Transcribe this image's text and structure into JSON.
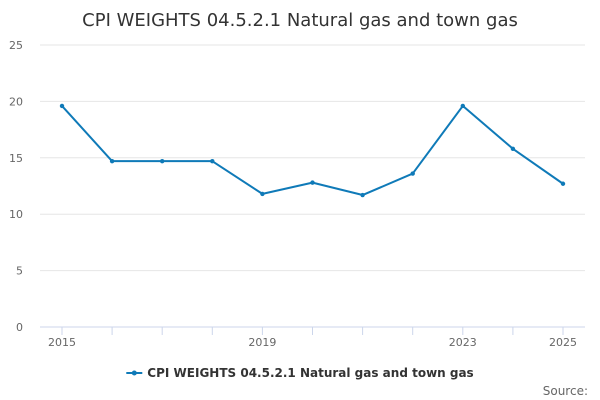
{
  "chart_data": {
    "type": "line",
    "title": "CPI WEIGHTS 04.5.2.1 Natural gas and town gas",
    "xlabel": "",
    "ylabel": "",
    "x": [
      2015,
      2016,
      2017,
      2018,
      2019,
      2020,
      2021,
      2022,
      2023,
      2024,
      2025
    ],
    "x_tick_labels": [
      {
        "x": 2015,
        "label": "2015"
      },
      {
        "x": 2019,
        "label": "2019"
      },
      {
        "x": 2023,
        "label": "2023"
      },
      {
        "x": 2025,
        "label": "2025"
      }
    ],
    "y_ticks": [
      {
        "value": 0,
        "label": "0"
      },
      {
        "value": 5,
        "label": "5"
      },
      {
        "value": 10,
        "label": "10"
      },
      {
        "value": 15,
        "label": "15"
      },
      {
        "value": 20,
        "label": "20"
      },
      {
        "value": 25,
        "label": "25"
      }
    ],
    "xlim": [
      2015,
      2025
    ],
    "ylim": [
      0,
      25
    ],
    "grid": true,
    "legend": "bottom-center",
    "series": [
      {
        "name": "CPI WEIGHTS 04.5.2.1 Natural gas and town gas",
        "color": "#0f7ab8",
        "values": [
          19.6,
          14.7,
          14.7,
          14.7,
          11.8,
          12.8,
          11.7,
          13.6,
          19.6,
          15.8,
          12.7
        ]
      }
    ],
    "source_label": "Source:"
  }
}
